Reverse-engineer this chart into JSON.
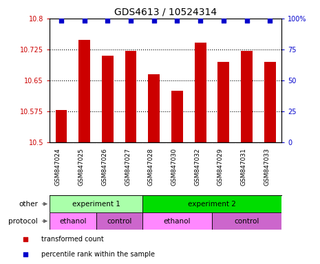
{
  "title": "GDS4613 / 10524314",
  "samples": [
    "GSM847024",
    "GSM847025",
    "GSM847026",
    "GSM847027",
    "GSM847028",
    "GSM847030",
    "GSM847032",
    "GSM847029",
    "GSM847031",
    "GSM847033"
  ],
  "bar_values": [
    10.578,
    10.748,
    10.71,
    10.722,
    10.665,
    10.625,
    10.742,
    10.695,
    10.722,
    10.695
  ],
  "percentile_values": [
    98,
    98,
    98,
    98,
    98,
    98,
    98,
    98,
    98,
    98
  ],
  "bar_color": "#cc0000",
  "percentile_color": "#0000cc",
  "ylim_left": [
    10.5,
    10.8
  ],
  "ylim_right": [
    0,
    100
  ],
  "yticks_left": [
    10.5,
    10.575,
    10.65,
    10.725,
    10.8
  ],
  "yticks_right": [
    0,
    25,
    50,
    75,
    100
  ],
  "ytick_labels_left": [
    "10.5",
    "10.575",
    "10.65",
    "10.725",
    "10.8"
  ],
  "ytick_labels_right": [
    "0",
    "25",
    "50",
    "75",
    "100%"
  ],
  "grid_values": [
    10.575,
    10.65,
    10.725
  ],
  "annotation_rows": [
    {
      "label": "other",
      "segments": [
        {
          "text": "experiment 1",
          "start": 0,
          "end": 4,
          "color": "#aaffaa"
        },
        {
          "text": "experiment 2",
          "start": 4,
          "end": 10,
          "color": "#00dd00"
        }
      ]
    },
    {
      "label": "protocol",
      "segments": [
        {
          "text": "ethanol",
          "start": 0,
          "end": 2,
          "color": "#ff88ff"
        },
        {
          "text": "control",
          "start": 2,
          "end": 4,
          "color": "#cc66cc"
        },
        {
          "text": "ethanol",
          "start": 4,
          "end": 7,
          "color": "#ff88ff"
        },
        {
          "text": "control",
          "start": 7,
          "end": 10,
          "color": "#cc66cc"
        }
      ]
    }
  ],
  "legend_items": [
    {
      "label": "transformed count",
      "color": "#cc0000",
      "marker": "s"
    },
    {
      "label": "percentile rank within the sample",
      "color": "#0000cc",
      "marker": "s"
    }
  ],
  "background_color": "#ffffff",
  "tick_area_color": "#cccccc",
  "bar_width": 0.5,
  "bar_bottom": 10.5,
  "sample_label_fontsize": 6.5,
  "tick_fontsize": 7,
  "annot_fontsize": 7.5,
  "title_fontsize": 10
}
